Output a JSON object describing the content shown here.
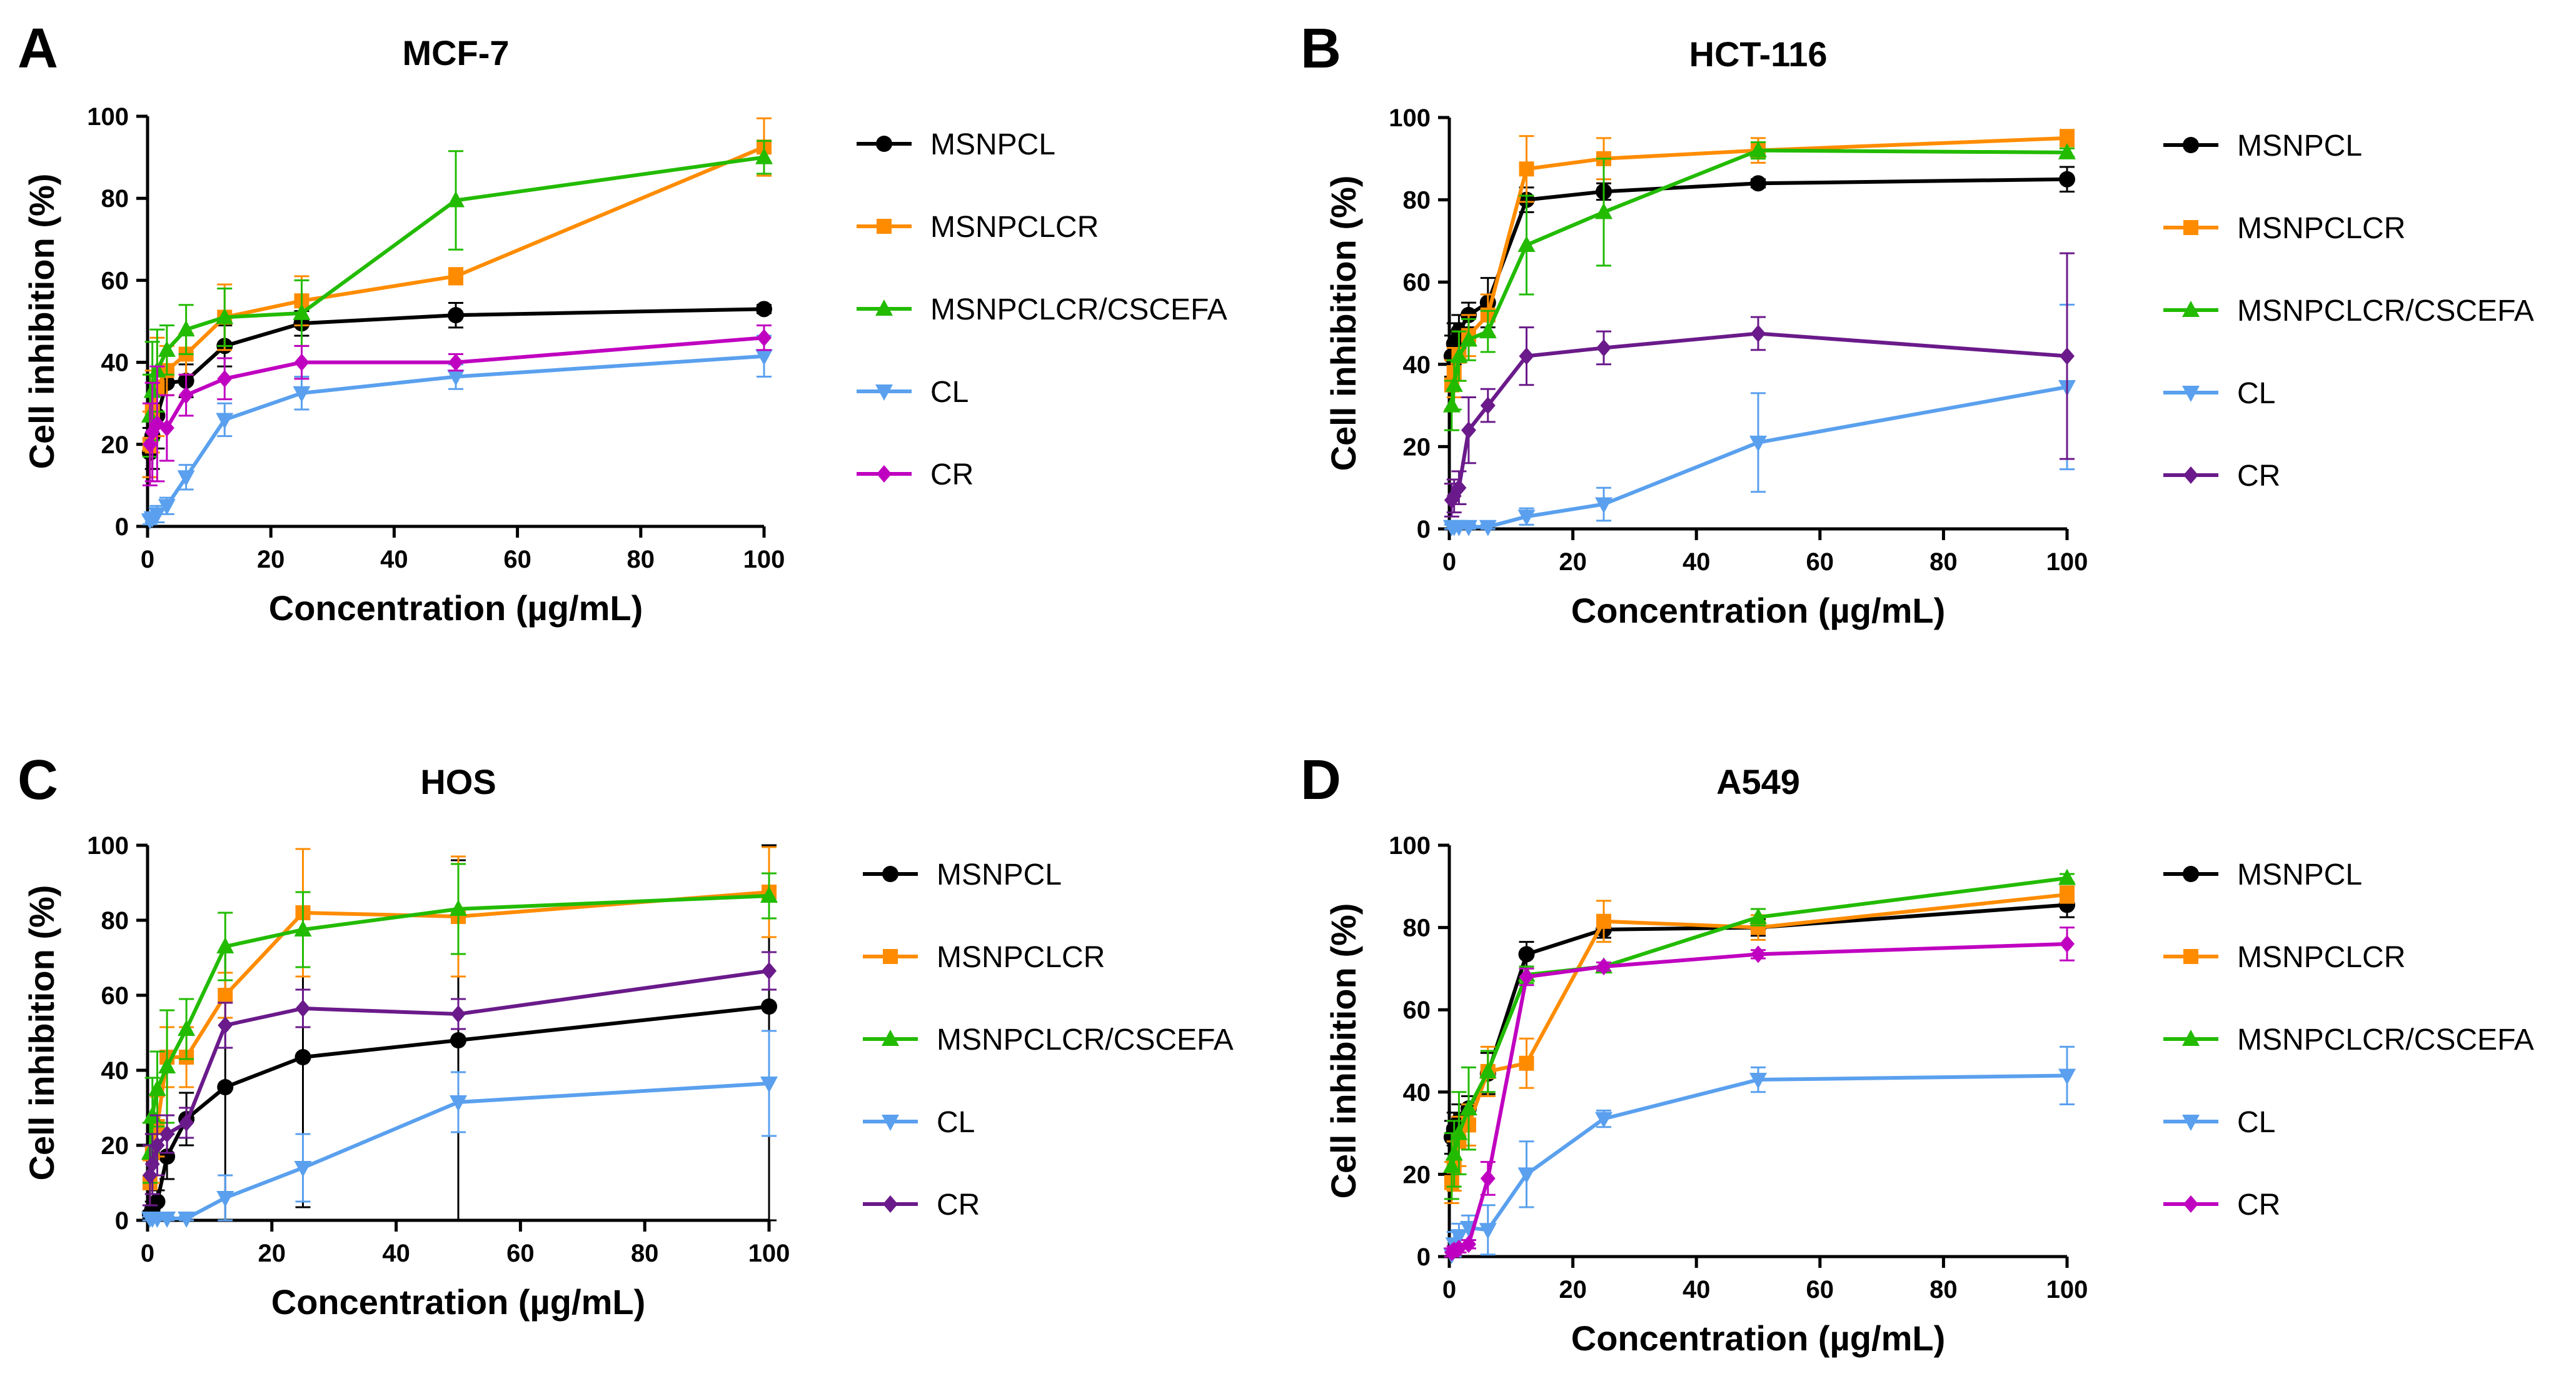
{
  "figure": {
    "background": "#ffffff",
    "series_colors": {
      "MSNPCL": "#000000",
      "MSNPCLCR": "#ff8c00",
      "MSNPCLCR/CSCEFA": "#22bb00",
      "CL": "#5aa0ee",
      "CR_magenta": "#c000c0",
      "CR_purple": "#6a1a8a"
    }
  },
  "chart_data": [
    {
      "panel": "A",
      "type": "line",
      "title": "MCF-7",
      "xlabel": "Concentration (µg/mL)",
      "ylabel": "Cell inhibition (%)",
      "xlim": [
        0,
        100
      ],
      "ylim": [
        0,
        100
      ],
      "xticks": [
        0,
        20,
        40,
        60,
        80,
        100
      ],
      "yticks": [
        0,
        20,
        40,
        60,
        80,
        100
      ],
      "grid": false,
      "legend_position": "right",
      "x": [
        0.39,
        0.78,
        1.56,
        3.13,
        6.25,
        12.5,
        25,
        50,
        100
      ],
      "series": [
        {
          "name": "MSNPCL",
          "marker": "circle",
          "color": "#000000",
          "values": [
            18,
            22,
            27,
            35,
            35.5,
            44,
            49.5,
            51.5,
            53
          ],
          "errors": [
            6,
            8,
            8,
            3,
            4,
            5,
            3,
            3,
            1
          ]
        },
        {
          "name": "MSNPCLCR",
          "marker": "square",
          "color": "#ff8c00",
          "values": [
            20,
            28,
            34,
            38,
            42,
            51,
            55,
            61,
            92.5
          ],
          "errors": [
            8,
            10,
            12,
            6,
            5,
            8,
            6,
            2,
            7
          ]
        },
        {
          "name": "MSNPCLCR/CSCEFA",
          "marker": "triangle-up",
          "color": "#22bb00",
          "values": [
            27,
            33,
            38,
            43,
            48,
            51,
            52,
            79.5,
            90
          ],
          "errors": [
            10,
            12,
            10,
            6,
            6,
            7,
            8,
            12,
            4
          ]
        },
        {
          "name": "CL",
          "marker": "triangle-down",
          "color": "#5aa0ee",
          "values": [
            1.5,
            2,
            3,
            5,
            12,
            26,
            32.5,
            36.5,
            41.5
          ],
          "errors": [
            1,
            1,
            2,
            2,
            3,
            4,
            4,
            3,
            5
          ]
        },
        {
          "name": "CR",
          "marker": "diamond",
          "color": "#c000c0",
          "values": [
            20,
            23,
            25,
            24,
            32,
            36,
            40,
            40,
            46
          ],
          "errors": [
            10,
            12,
            14,
            8,
            5,
            5,
            4,
            2,
            3
          ]
        }
      ]
    },
    {
      "panel": "B",
      "type": "line",
      "title": "HCT-116",
      "xlabel": "Concentration (µg/mL)",
      "ylabel": "Cell inhibition (%)",
      "xlim": [
        0,
        100
      ],
      "ylim": [
        0,
        100
      ],
      "xticks": [
        0,
        20,
        40,
        60,
        80,
        100
      ],
      "yticks": [
        0,
        20,
        40,
        60,
        80,
        100
      ],
      "grid": false,
      "legend_position": "right",
      "x": [
        0.39,
        0.78,
        1.56,
        3.13,
        6.25,
        12.5,
        25,
        50,
        100
      ],
      "series": [
        {
          "name": "MSNPCL",
          "marker": "circle",
          "color": "#000000",
          "values": [
            42,
            45,
            48,
            52,
            55,
            80,
            82,
            84,
            85
          ],
          "errors": [
            5,
            5,
            4,
            3,
            6,
            3,
            2,
            1,
            3
          ]
        },
        {
          "name": "MSNPCLCR",
          "marker": "square",
          "color": "#ff8c00",
          "values": [
            35,
            38,
            42,
            47,
            52,
            87.5,
            90,
            92,
            95
          ],
          "errors": [
            6,
            6,
            6,
            5,
            5,
            8,
            5,
            3,
            2
          ]
        },
        {
          "name": "MSNPCLCR/CSCEFA",
          "marker": "triangle-up",
          "color": "#22bb00",
          "values": [
            30,
            35,
            42,
            46,
            48,
            69,
            77,
            92,
            91.5
          ],
          "errors": [
            6,
            6,
            6,
            5,
            5,
            12,
            13,
            2,
            1
          ]
        },
        {
          "name": "CL",
          "marker": "triangle-down",
          "color": "#5aa0ee",
          "values": [
            0.5,
            0.5,
            0.5,
            0.5,
            0.5,
            3,
            6,
            21,
            34.5
          ],
          "errors": [
            0.5,
            0.5,
            0.5,
            0.5,
            0.5,
            2,
            4,
            12,
            20
          ]
        },
        {
          "name": "CR",
          "marker": "diamond",
          "color": "#6a1a8a",
          "values": [
            7,
            8,
            10,
            24,
            30,
            42,
            44,
            47.5,
            42
          ],
          "errors": [
            4,
            4,
            4,
            8,
            4,
            7,
            4,
            4,
            25
          ]
        }
      ]
    },
    {
      "panel": "C",
      "type": "line",
      "title": "HOS",
      "xlabel": "Concentration (µg/mL)",
      "ylabel": "Cell inhibition (%)",
      "xlim": [
        0,
        100
      ],
      "ylim": [
        0,
        100
      ],
      "xticks": [
        0,
        20,
        40,
        60,
        80,
        100
      ],
      "yticks": [
        0,
        20,
        40,
        60,
        80,
        100
      ],
      "grid": false,
      "legend_position": "right",
      "x": [
        0.39,
        0.78,
        1.56,
        3.13,
        6.25,
        12.5,
        25,
        50,
        100
      ],
      "series": [
        {
          "name": "MSNPCL",
          "marker": "circle",
          "color": "#000000",
          "values": [
            1.5,
            3,
            5,
            17,
            27,
            35.5,
            43.5,
            48,
            57
          ],
          "errors": [
            1,
            2,
            3,
            6,
            7,
            36,
            40,
            48,
            57
          ]
        },
        {
          "name": "MSNPCLCR",
          "marker": "square",
          "color": "#ff8c00",
          "values": [
            10,
            18,
            25,
            43.5,
            43.5,
            60,
            82,
            81,
            87.5
          ],
          "errors": [
            6,
            8,
            8,
            8,
            8,
            6,
            17,
            16,
            12
          ]
        },
        {
          "name": "MSNPCLCR/CSCEFA",
          "marker": "triangle-up",
          "color": "#22bb00",
          "values": [
            18,
            28,
            35,
            41,
            51,
            73,
            77.5,
            83,
            86.5
          ],
          "errors": [
            8,
            10,
            10,
            15,
            8,
            9,
            10,
            12,
            6
          ]
        },
        {
          "name": "CL",
          "marker": "triangle-down",
          "color": "#5aa0ee",
          "values": [
            0.5,
            0.5,
            0.5,
            0.5,
            0.5,
            6,
            14,
            31.5,
            36.5
          ],
          "errors": [
            0.5,
            0.5,
            0.5,
            0.5,
            0.5,
            6,
            9,
            8,
            14
          ]
        },
        {
          "name": "CR",
          "marker": "diamond",
          "color": "#6a1a8a",
          "values": [
            12,
            15,
            20,
            23,
            26,
            52,
            56.5,
            55,
            66.5
          ],
          "errors": [
            8,
            8,
            8,
            5,
            4,
            6,
            5,
            4,
            5
          ]
        }
      ]
    },
    {
      "panel": "D",
      "type": "line",
      "title": "A549",
      "xlabel": "Concentration (µg/mL)",
      "ylabel": "Cell inhibition (%)",
      "xlim": [
        0,
        100
      ],
      "ylim": [
        0,
        100
      ],
      "xticks": [
        0,
        20,
        40,
        60,
        80,
        100
      ],
      "yticks": [
        0,
        20,
        40,
        60,
        80,
        100
      ],
      "grid": false,
      "legend_position": "right",
      "x": [
        0.39,
        0.78,
        1.56,
        3.13,
        6.25,
        12.5,
        25,
        50,
        100
      ],
      "series": [
        {
          "name": "MSNPCL",
          "marker": "circle",
          "color": "#000000",
          "values": [
            29,
            31,
            33,
            36,
            44.5,
            73.5,
            79.5,
            80,
            85.5
          ],
          "errors": [
            4,
            4,
            4,
            3,
            5,
            3,
            2,
            2,
            3
          ]
        },
        {
          "name": "MSNPCLCR",
          "marker": "square",
          "color": "#ff8c00",
          "values": [
            18,
            22,
            28,
            32,
            45,
            47,
            81.5,
            80,
            88
          ],
          "errors": [
            5,
            6,
            6,
            5,
            6,
            6,
            5,
            3,
            2
          ]
        },
        {
          "name": "MSNPCLCR/CSCEFA",
          "marker": "triangle-up",
          "color": "#22bb00",
          "values": [
            22,
            25,
            30,
            36,
            45,
            68.5,
            70.5,
            82.5,
            92
          ],
          "errors": [
            8,
            8,
            10,
            10,
            5,
            2,
            1,
            2,
            1
          ]
        },
        {
          "name": "CL",
          "marker": "triangle-down",
          "color": "#5aa0ee",
          "values": [
            0.5,
            3,
            5,
            7,
            6.5,
            20,
            33.5,
            43,
            44
          ],
          "errors": [
            1,
            3,
            3,
            3,
            6,
            8,
            2,
            3,
            7
          ]
        },
        {
          "name": "CR",
          "marker": "diamond",
          "color": "#c000c0",
          "values": [
            1,
            1.5,
            2,
            3,
            19,
            68,
            70.5,
            73.5,
            76
          ],
          "errors": [
            1,
            1,
            1,
            1,
            4,
            2,
            1,
            1,
            4
          ]
        }
      ]
    }
  ]
}
